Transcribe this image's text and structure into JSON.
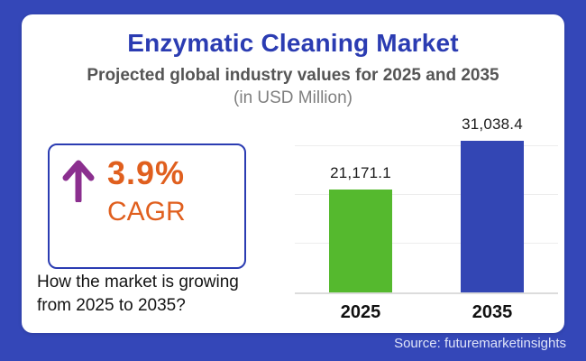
{
  "colors": {
    "background": "#3447b8",
    "card": "#ffffff",
    "title_blue": "#2b3cb2",
    "subtitle_gray": "#555555",
    "unit_gray": "#7f7f7f",
    "accent_orange": "#e05f1e",
    "arrow_purple": "#8b2f8f",
    "box_border_blue": "#2b3cb2",
    "bar_green_2025": "#55b92e",
    "bar_blue_2035": "#3346b4",
    "gridline": "#ededed",
    "source_text": "#dfe4f8"
  },
  "header": {
    "title": "Enzymatic Cleaning Market",
    "subtitle": "Projected global industry values for 2025 and 2035",
    "unit": "(in USD Million)"
  },
  "cagr": {
    "arrow_icon": "up-arrow",
    "value": "3.9%",
    "label": "CAGR",
    "question": "How the market is growing from 2025 to 2035?"
  },
  "footer": {
    "source": "Source: futuremarketinsights"
  },
  "chart_data": {
    "type": "bar",
    "title": "Enzymatic Cleaning Market",
    "subtitle": "Projected global industry values for 2025 and 2035",
    "unit": "USD Million",
    "categories": [
      "2025",
      "2035"
    ],
    "values": [
      21171.1,
      31038.4
    ],
    "value_labels": [
      "21,171.1",
      "31,038.4"
    ],
    "bar_colors": [
      "#55b92e",
      "#3346b4"
    ],
    "cagr_percent": 3.9,
    "ylim": [
      0,
      37000
    ],
    "gridlines": [
      10000,
      20000,
      30000
    ],
    "grid": "horizontal",
    "legend": "none"
  }
}
